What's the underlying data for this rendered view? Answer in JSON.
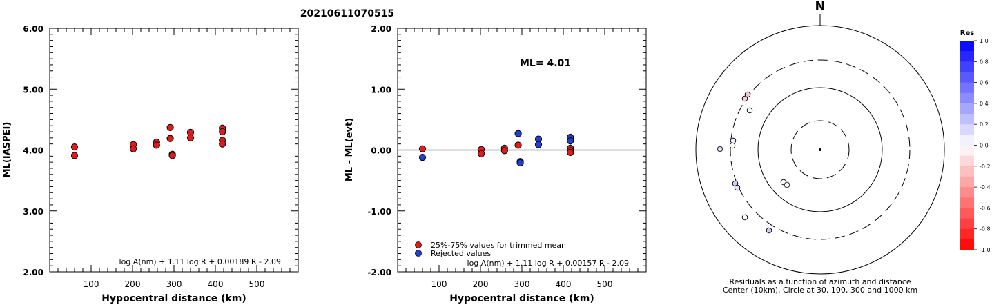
{
  "title": "20210611070515",
  "chart_data": [
    {
      "type": "scatter",
      "ylabel": "ML(IASPEI)",
      "xlabel": "Hypocentral distance (km)",
      "xlim": [
        0,
        600
      ],
      "ylim": [
        2.0,
        6.0
      ],
      "x_ticks": [
        "100",
        "200",
        "300",
        "400",
        "500"
      ],
      "y_ticks": [
        "2.00",
        "3.00",
        "4.00",
        "5.00",
        "6.00"
      ],
      "formula": "log A(nm) + 1.11 log R + 0.00189 R - 2.09",
      "series": [
        {
          "color": "#e31a1c",
          "points": [
            [
              60,
              4.05
            ],
            [
              60,
              3.91
            ],
            [
              202,
              4.09
            ],
            [
              202,
              4.02
            ],
            [
              258,
              4.13
            ],
            [
              258,
              4.08
            ],
            [
              291,
              4.37
            ],
            [
              291,
              4.19
            ],
            [
              296,
              3.93
            ],
            [
              296,
              3.91
            ],
            [
              340,
              4.29
            ],
            [
              340,
              4.2
            ],
            [
              417,
              4.36
            ],
            [
              417,
              4.3
            ],
            [
              417,
              4.16
            ],
            [
              417,
              4.1
            ]
          ]
        }
      ]
    },
    {
      "type": "scatter",
      "ylabel": "ML - ML(evt)",
      "xlabel": "Hypocentral distance (km)",
      "xlim": [
        0,
        600
      ],
      "ylim": [
        -2.0,
        2.0
      ],
      "x_ticks": [
        "100",
        "200",
        "300",
        "400",
        "500"
      ],
      "y_ticks": [
        "-2.00",
        "-1.00",
        "0.00",
        "1.00",
        "2.00"
      ],
      "annotation": "ML= 4.01",
      "formula": "log A(nm) + 1.11 log R + 0.00157 R - 2.09",
      "series": [
        {
          "name": "25%-75% values for trimmed mean",
          "color": "#e31a1c",
          "points": [
            [
              60,
              0.02
            ],
            [
              202,
              0.01
            ],
            [
              202,
              -0.06
            ],
            [
              258,
              0.03
            ],
            [
              258,
              -0.01
            ],
            [
              291,
              0.08
            ],
            [
              417,
              0.03
            ],
            [
              417,
              -0.01
            ],
            [
              417,
              -0.04
            ]
          ]
        },
        {
          "name": "Rejected values",
          "color": "#1f3fd6",
          "points": [
            [
              60,
              -0.12
            ],
            [
              291,
              0.27
            ],
            [
              296,
              -0.19
            ],
            [
              296,
              -0.21
            ],
            [
              340,
              0.18
            ],
            [
              340,
              0.09
            ],
            [
              417,
              0.21
            ],
            [
              417,
              0.15
            ]
          ]
        }
      ]
    },
    {
      "type": "polar",
      "north_label": "N",
      "caption_line1": "Residuals as a function of azimuth and distance",
      "caption_line2": "Center (10km), Circle at 30, 100, 300 and 1000 km",
      "colorbar": {
        "title": "Res",
        "ticks": [
          "1.0",
          "0.8",
          "0.6",
          "0.4",
          "0.2",
          "0.0",
          "-0.2",
          "-0.4",
          "-0.6",
          "-0.8",
          "-1.0"
        ]
      }
    }
  ]
}
